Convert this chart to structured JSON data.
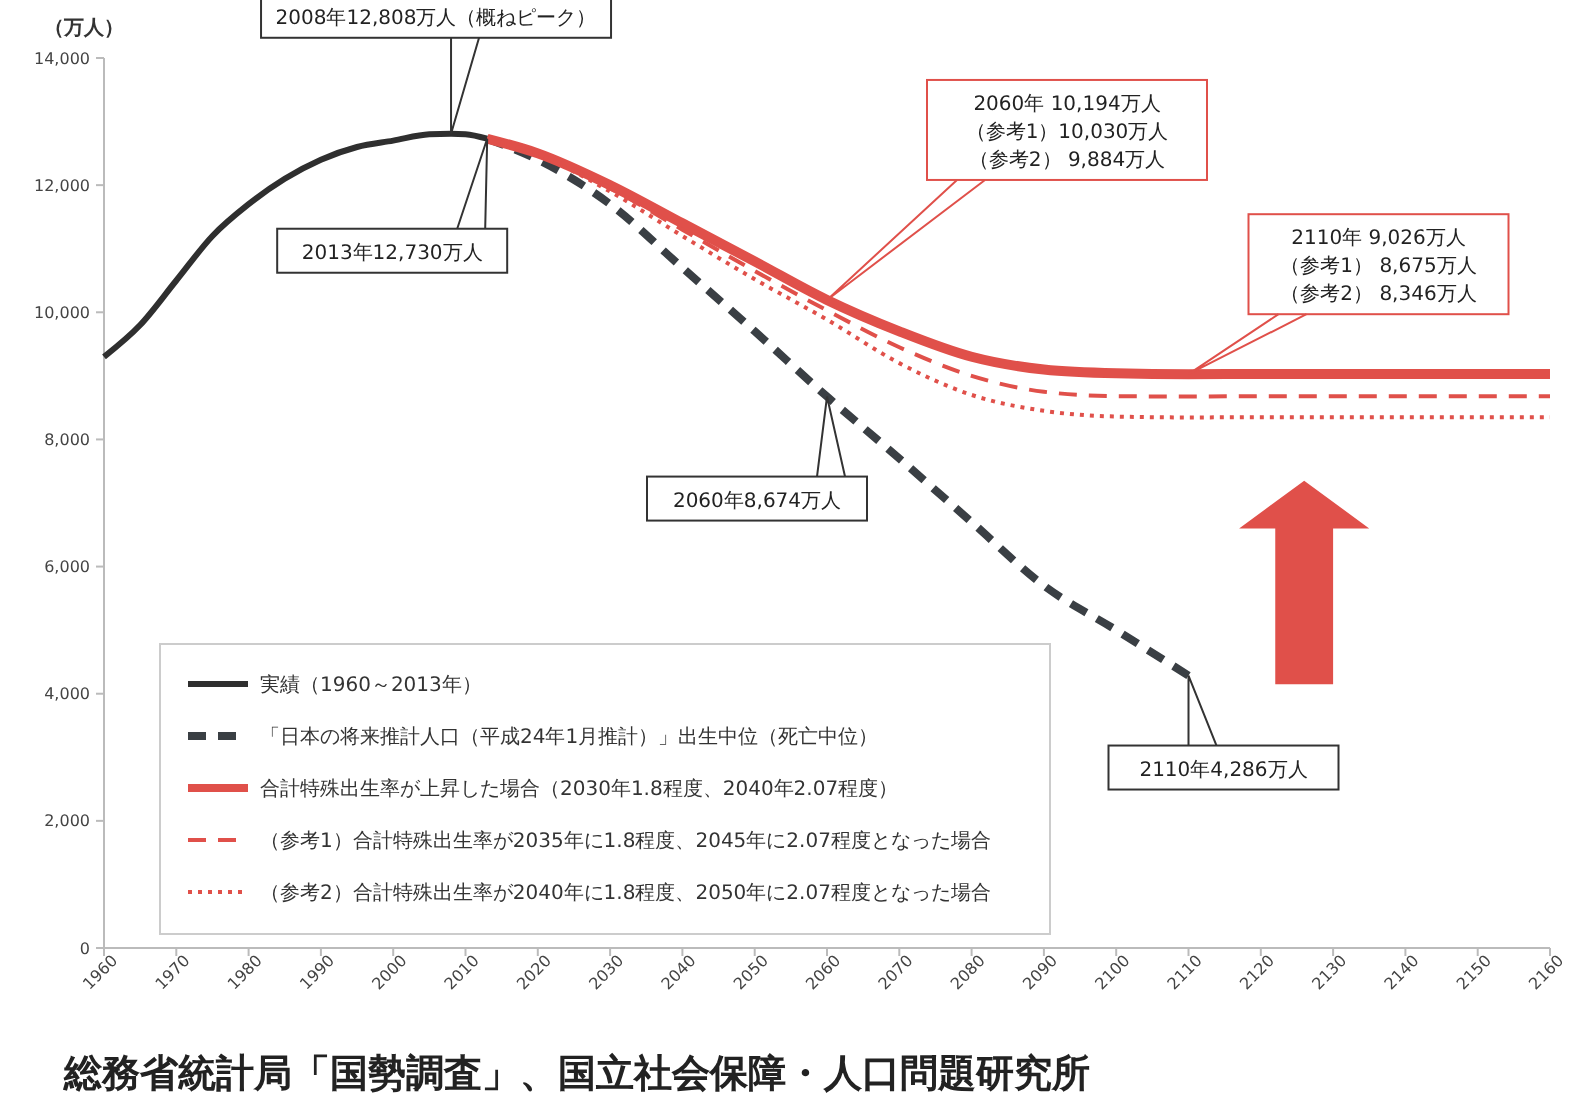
{
  "chart_data": {
    "type": "line",
    "ylabel": "（万人）",
    "xlim": [
      1960,
      2160
    ],
    "ylim": [
      0,
      14000
    ],
    "xticks": [
      1960,
      1970,
      1980,
      1990,
      2000,
      2010,
      2020,
      2030,
      2040,
      2050,
      2060,
      2070,
      2080,
      2090,
      2100,
      2110,
      2120,
      2130,
      2140,
      2150,
      2160
    ],
    "yticks": [
      {
        "value": 0,
        "label": "0"
      },
      {
        "value": 2000,
        "label": "2,000"
      },
      {
        "value": 4000,
        "label": "4,000"
      },
      {
        "value": 6000,
        "label": "6,000"
      },
      {
        "value": 8000,
        "label": "8,000"
      },
      {
        "value": 10000,
        "label": "10,000"
      },
      {
        "value": 12000,
        "label": "12,000"
      },
      {
        "value": 14000,
        "label": "14,000"
      }
    ],
    "legend": "bottom left",
    "series": [
      {
        "name": "実績（1960～2013年）",
        "color": "#2f2f2f",
        "line_style": "solid",
        "x": [
          1960,
          1965,
          1970,
          1975,
          1980,
          1985,
          1990,
          1995,
          2000,
          2005,
          2008,
          2010,
          2013
        ],
        "values": [
          9300,
          9800,
          10500,
          11200,
          11700,
          12100,
          12400,
          12600,
          12700,
          12800,
          12808,
          12800,
          12730
        ]
      },
      {
        "name": "「日本の将来推計人口（平成24年1月推計）」出生中位（死亡中位）",
        "color": "#3a3f44",
        "line_style": "dashed",
        "x": [
          2013,
          2020,
          2030,
          2040,
          2050,
          2060,
          2070,
          2080,
          2090,
          2100,
          2110
        ],
        "values": [
          12730,
          12400,
          11700,
          10700,
          9700,
          8674,
          7700,
          6700,
          5700,
          5000,
          4286
        ]
      },
      {
        "name": "合計特殊出生率が上昇した場合（2030年1.8程度、2040年2.07程度）",
        "color": "#e0504a",
        "line_style": "solid",
        "x": [
          2013,
          2020,
          2030,
          2040,
          2050,
          2060,
          2070,
          2080,
          2090,
          2100,
          2110,
          2120,
          2130,
          2140,
          2150,
          2160
        ],
        "values": [
          12730,
          12500,
          12000,
          11400,
          10800,
          10194,
          9700,
          9300,
          9100,
          9040,
          9026,
          9030,
          9030,
          9030,
          9030,
          9030
        ]
      },
      {
        "name": "（参考1）合計特殊出生率が2035年に1.8程度、2045年に2.07程度となった場合",
        "color": "#e0504a",
        "line_style": "dashed",
        "x": [
          2013,
          2020,
          2030,
          2040,
          2050,
          2060,
          2070,
          2080,
          2090,
          2100,
          2110,
          2120,
          2130,
          2140,
          2150,
          2160
        ],
        "values": [
          12730,
          12490,
          11950,
          11300,
          10650,
          10030,
          9450,
          9000,
          8750,
          8680,
          8675,
          8680,
          8680,
          8680,
          8680,
          8680
        ]
      },
      {
        "name": "（参考2）合計特殊出生率が2040年に1.8程度、2050年に2.07程度となった場合",
        "color": "#e0504a",
        "line_style": "dotted",
        "x": [
          2013,
          2020,
          2030,
          2040,
          2050,
          2060,
          2070,
          2080,
          2090,
          2100,
          2110,
          2120,
          2130,
          2140,
          2150,
          2160
        ],
        "values": [
          12730,
          12480,
          11900,
          11200,
          10520,
          9884,
          9200,
          8700,
          8450,
          8360,
          8346,
          8350,
          8350,
          8350,
          8350,
          8350
        ]
      }
    ],
    "annotations": [
      "2008年12,808万人（概ねピーク）",
      "2013年12,730万人",
      "2060年 10,194万人",
      "（参考1）10,030万人",
      "（参考2） 9,884万人",
      "2110年 9,026万人",
      "（参考1） 8,675万人",
      "（参考2） 8,346万人",
      "2060年8,674万人",
      "2110年4,286万人",
      "総務省統計局「国勢調査」、国立社会保障・人口問題研究所"
    ]
  }
}
